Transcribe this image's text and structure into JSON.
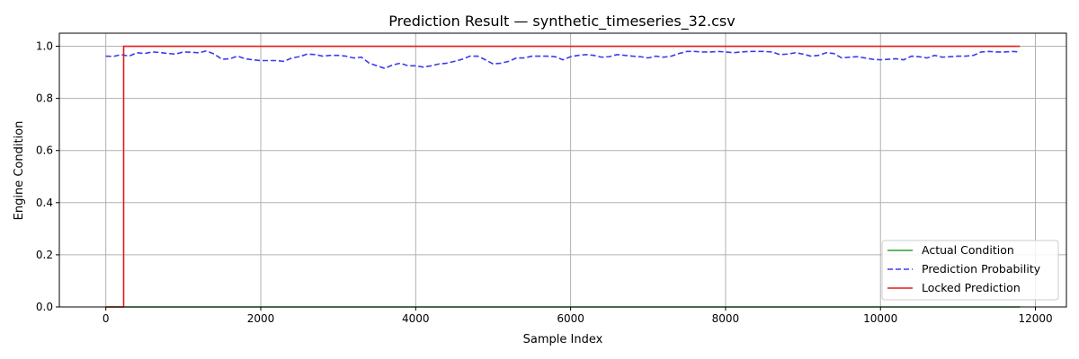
{
  "chart_data": {
    "type": "line",
    "title": "Prediction Result — synthetic_timeseries_32.csv",
    "xlabel": "Sample Index",
    "ylabel": "Engine Condition",
    "xlim": [
      -600,
      12400
    ],
    "ylim": [
      0.0,
      1.05
    ],
    "xticks": [
      0,
      2000,
      4000,
      6000,
      8000,
      10000,
      12000
    ],
    "xtick_labels": [
      "0",
      "2000",
      "4000",
      "6000",
      "8000",
      "10000",
      "12000"
    ],
    "yticks": [
      0.0,
      0.2,
      0.4,
      0.6,
      0.8,
      1.0
    ],
    "ytick_labels": [
      "0.0",
      "0.2",
      "0.4",
      "0.6",
      "0.8",
      "1.0"
    ],
    "grid": true,
    "legend_position": "lower right",
    "series": [
      {
        "name": "Actual Condition",
        "color": "#2ca02c",
        "style": "solid",
        "points": [
          [
            0,
            0.0
          ],
          [
            11800,
            0.0
          ]
        ]
      },
      {
        "name": "Prediction Probability",
        "color": "#3b3bf0",
        "style": "dashed",
        "points": [
          [
            0,
            0.962
          ],
          [
            100,
            0.961
          ],
          [
            200,
            0.968
          ],
          [
            300,
            0.962
          ],
          [
            400,
            0.975
          ],
          [
            500,
            0.972
          ],
          [
            600,
            0.978
          ],
          [
            700,
            0.976
          ],
          [
            800,
            0.972
          ],
          [
            900,
            0.97
          ],
          [
            1000,
            0.978
          ],
          [
            1100,
            0.977
          ],
          [
            1200,
            0.975
          ],
          [
            1300,
            0.982
          ],
          [
            1400,
            0.97
          ],
          [
            1500,
            0.95
          ],
          [
            1600,
            0.952
          ],
          [
            1700,
            0.962
          ],
          [
            1800,
            0.952
          ],
          [
            1900,
            0.948
          ],
          [
            2000,
            0.945
          ],
          [
            2100,
            0.945
          ],
          [
            2200,
            0.945
          ],
          [
            2300,
            0.942
          ],
          [
            2400,
            0.955
          ],
          [
            2500,
            0.96
          ],
          [
            2600,
            0.97
          ],
          [
            2700,
            0.968
          ],
          [
            2800,
            0.962
          ],
          [
            2900,
            0.965
          ],
          [
            3000,
            0.965
          ],
          [
            3100,
            0.962
          ],
          [
            3200,
            0.955
          ],
          [
            3300,
            0.958
          ],
          [
            3400,
            0.935
          ],
          [
            3500,
            0.925
          ],
          [
            3600,
            0.915
          ],
          [
            3700,
            0.928
          ],
          [
            3800,
            0.935
          ],
          [
            3900,
            0.925
          ],
          [
            4000,
            0.925
          ],
          [
            4100,
            0.92
          ],
          [
            4200,
            0.925
          ],
          [
            4300,
            0.932
          ],
          [
            4400,
            0.935
          ],
          [
            4500,
            0.942
          ],
          [
            4600,
            0.95
          ],
          [
            4700,
            0.962
          ],
          [
            4800,
            0.962
          ],
          [
            4900,
            0.948
          ],
          [
            5000,
            0.932
          ],
          [
            5100,
            0.935
          ],
          [
            5200,
            0.942
          ],
          [
            5300,
            0.955
          ],
          [
            5400,
            0.955
          ],
          [
            5500,
            0.962
          ],
          [
            5600,
            0.962
          ],
          [
            5700,
            0.962
          ],
          [
            5800,
            0.96
          ],
          [
            5900,
            0.948
          ],
          [
            6000,
            0.96
          ],
          [
            6100,
            0.965
          ],
          [
            6200,
            0.968
          ],
          [
            6300,
            0.965
          ],
          [
            6400,
            0.958
          ],
          [
            6500,
            0.96
          ],
          [
            6600,
            0.968
          ],
          [
            6700,
            0.965
          ],
          [
            6800,
            0.962
          ],
          [
            6900,
            0.96
          ],
          [
            7000,
            0.955
          ],
          [
            7100,
            0.962
          ],
          [
            7200,
            0.958
          ],
          [
            7300,
            0.962
          ],
          [
            7400,
            0.972
          ],
          [
            7500,
            0.98
          ],
          [
            7600,
            0.98
          ],
          [
            7700,
            0.978
          ],
          [
            7800,
            0.978
          ],
          [
            7900,
            0.98
          ],
          [
            8000,
            0.978
          ],
          [
            8100,
            0.975
          ],
          [
            8200,
            0.978
          ],
          [
            8300,
            0.98
          ],
          [
            8400,
            0.98
          ],
          [
            8500,
            0.98
          ],
          [
            8600,
            0.978
          ],
          [
            8700,
            0.968
          ],
          [
            8800,
            0.97
          ],
          [
            8900,
            0.975
          ],
          [
            9000,
            0.97
          ],
          [
            9100,
            0.962
          ],
          [
            9200,
            0.965
          ],
          [
            9300,
            0.975
          ],
          [
            9400,
            0.972
          ],
          [
            9500,
            0.955
          ],
          [
            9600,
            0.958
          ],
          [
            9700,
            0.96
          ],
          [
            9800,
            0.955
          ],
          [
            9900,
            0.95
          ],
          [
            10000,
            0.948
          ],
          [
            10100,
            0.95
          ],
          [
            10200,
            0.952
          ],
          [
            10300,
            0.948
          ],
          [
            10400,
            0.962
          ],
          [
            10500,
            0.96
          ],
          [
            10600,
            0.955
          ],
          [
            10700,
            0.965
          ],
          [
            10800,
            0.958
          ],
          [
            10900,
            0.96
          ],
          [
            11000,
            0.962
          ],
          [
            11100,
            0.962
          ],
          [
            11200,
            0.965
          ],
          [
            11300,
            0.978
          ],
          [
            11400,
            0.98
          ],
          [
            11500,
            0.978
          ],
          [
            11600,
            0.978
          ],
          [
            11700,
            0.98
          ],
          [
            11800,
            0.978
          ]
        ]
      },
      {
        "name": "Locked Prediction",
        "color": "#e41a1c",
        "style": "solid",
        "points": [
          [
            0,
            0.0
          ],
          [
            230,
            0.0
          ],
          [
            230,
            1.0
          ],
          [
            11800,
            1.0
          ]
        ]
      }
    ]
  }
}
